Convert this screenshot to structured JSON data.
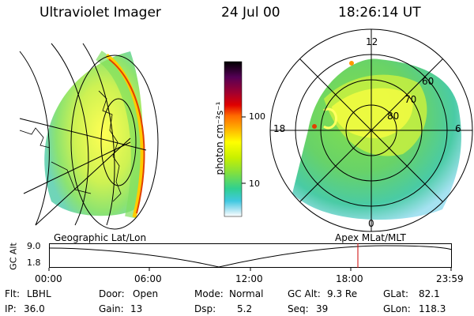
{
  "header": {
    "instrument": "Ultraviolet Imager",
    "date": "24 Jul 00",
    "time": "18:26:14 UT"
  },
  "colorbar": {
    "label": "photon cm⁻²s⁻¹",
    "ticks": [
      "100",
      "10"
    ],
    "colors": [
      "#000000",
      "#550055",
      "#a00030",
      "#e00000",
      "#ff6a00",
      "#ffae00",
      "#ffff00",
      "#c8f000",
      "#80e040",
      "#30d090",
      "#40c8e0",
      "#a0e0f0",
      "#ffffff"
    ]
  },
  "left_panel": {
    "caption": "Geographic Lat/Lon"
  },
  "right_panel": {
    "caption": "Apex MLat/MLT",
    "mlt_labels": [
      "12",
      "18",
      "6",
      "0"
    ],
    "lat_labels": [
      "60",
      "70",
      "80"
    ]
  },
  "alt_plot": {
    "ylabel": "GC Alt",
    "y_top": "9.0",
    "y_bottom": "1.8",
    "x_ticks": [
      "00:00",
      "06:00",
      "12:00",
      "18:00",
      "23:59"
    ],
    "marker_color": "#cc0000"
  },
  "status": {
    "row1": [
      {
        "key": "Flt:",
        "val": "LBHL"
      },
      {
        "key": "Door:",
        "val": "Open"
      },
      {
        "key": "Mode:",
        "val": "Normal"
      },
      {
        "key": "GC Alt:",
        "val": "9.3 Re"
      },
      {
        "key": "GLat:",
        "val": "82.1"
      }
    ],
    "row2": [
      {
        "key": "IP:",
        "val": "36.0"
      },
      {
        "key": "Gain:",
        "val": "13"
      },
      {
        "key": "Dsp:",
        "val": "5.2"
      },
      {
        "key": "Seq:",
        "val": "39"
      },
      {
        "key": "GLon:",
        "val": "118.3"
      }
    ]
  }
}
